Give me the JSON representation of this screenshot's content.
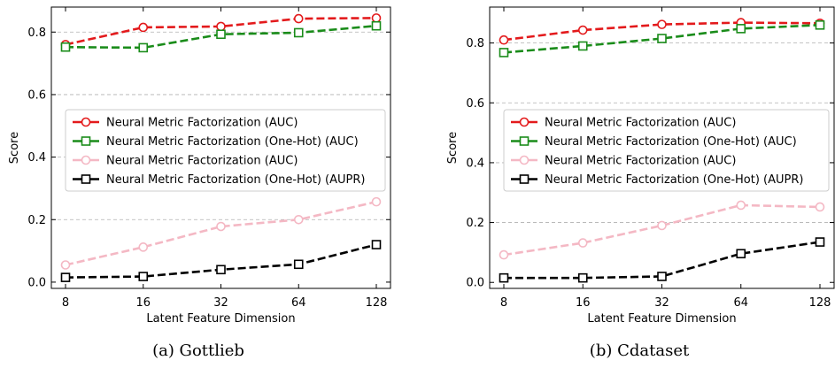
{
  "colors": {
    "red": "#e31a1c",
    "green": "#1a8c1a",
    "pink": "#f4b8c4",
    "black": "#000000",
    "grid": "#b0b0b0"
  },
  "chart_data": [
    {
      "type": "line",
      "caption": "(a) Gottlieb",
      "xlabel": "Latent Feature Dimension",
      "ylabel": "Score",
      "categories": [
        "8",
        "16",
        "32",
        "64",
        "128"
      ],
      "ylim": [
        -0.02,
        0.88
      ],
      "yticks": [
        "0.0",
        "0.2",
        "0.4",
        "0.6",
        "0.8"
      ],
      "grid": "horizontal dashed",
      "legend_position": "center-right",
      "series": [
        {
          "name": "Neural Metric Factorization (AUC)",
          "color": "#e31a1c",
          "marker": "circle",
          "values": [
            0.76,
            0.815,
            0.818,
            0.843,
            0.845
          ]
        },
        {
          "name": "Neural Metric Factorization (One-Hot) (AUC)",
          "color": "#1a8c1a",
          "marker": "square",
          "values": [
            0.752,
            0.75,
            0.793,
            0.798,
            0.82
          ]
        },
        {
          "name": "Neural Metric Factorization (AUC)",
          "color": "#f4b8c4",
          "marker": "circle",
          "values": [
            0.055,
            0.112,
            0.178,
            0.2,
            0.257
          ]
        },
        {
          "name": "Neural Metric Factorization (One-Hot) (AUPR)",
          "color": "#000000",
          "marker": "square",
          "values": [
            0.015,
            0.018,
            0.04,
            0.057,
            0.12
          ]
        }
      ]
    },
    {
      "type": "line",
      "caption": "(b) Cdataset",
      "xlabel": "Latent Feature Dimension",
      "ylabel": "Score",
      "categories": [
        "8",
        "16",
        "32",
        "64",
        "128"
      ],
      "ylim": [
        -0.02,
        0.92
      ],
      "yticks": [
        "0.0",
        "0.2",
        "0.4",
        "0.6",
        "0.8"
      ],
      "grid": "horizontal dashed",
      "legend_position": "center-right",
      "series": [
        {
          "name": "Neural Metric Factorization (AUC)",
          "color": "#e31a1c",
          "marker": "circle",
          "values": [
            0.81,
            0.843,
            0.862,
            0.868,
            0.866
          ]
        },
        {
          "name": "Neural Metric Factorization (One-Hot) (AUC)",
          "color": "#1a8c1a",
          "marker": "square",
          "values": [
            0.768,
            0.79,
            0.815,
            0.848,
            0.86
          ]
        },
        {
          "name": "Neural Metric Factorization (AUC)",
          "color": "#f4b8c4",
          "marker": "circle",
          "values": [
            0.092,
            0.132,
            0.19,
            0.258,
            0.252
          ]
        },
        {
          "name": "Neural Metric Factorization (One-Hot) (AUPR)",
          "color": "#000000",
          "marker": "square",
          "values": [
            0.015,
            0.015,
            0.02,
            0.096,
            0.135
          ]
        }
      ]
    }
  ]
}
